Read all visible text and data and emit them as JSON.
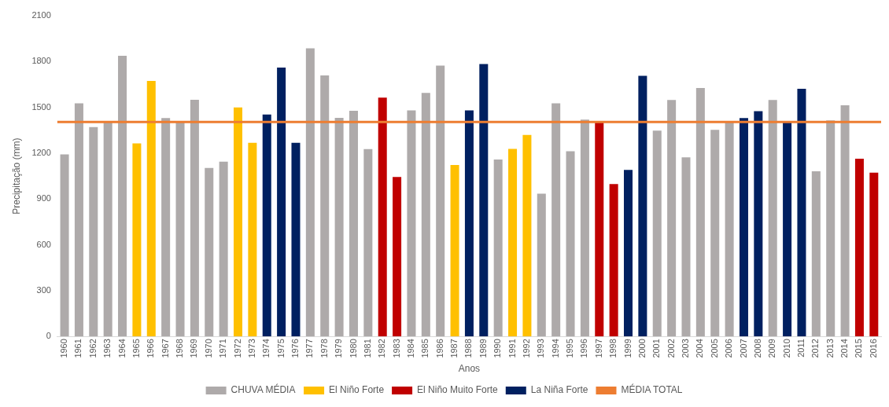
{
  "chart_data": {
    "type": "bar",
    "xlabel": "Anos",
    "ylabel": "Precipitação (mm)",
    "stacked": true,
    "categories": [
      "1960",
      "1961",
      "1962",
      "1963",
      "1964",
      "1965",
      "1966",
      "1967",
      "1968",
      "1969",
      "1970",
      "1971",
      "1972",
      "1973",
      "1974",
      "1975",
      "1976",
      "1977",
      "1978",
      "1979",
      "1980",
      "1981",
      "1982",
      "1983",
      "1984",
      "1985",
      "1986",
      "1987",
      "1988",
      "1989",
      "1990",
      "1991",
      "1992",
      "1993",
      "1994",
      "1995",
      "1996",
      "1997",
      "1998",
      "1999",
      "2000",
      "2001",
      "2002",
      "2003",
      "2004",
      "2005",
      "2006",
      "2007",
      "2008",
      "2009",
      "2010",
      "2011",
      "2012",
      "2013",
      "2014",
      "2015",
      "2016"
    ],
    "series": [
      {
        "name": "CHUVA MÉDIA",
        "color": "#aeaaaa",
        "values": [
          1192,
          1526,
          1371,
          1404,
          1837,
          null,
          null,
          1430,
          1404,
          1550,
          1103,
          1144,
          null,
          null,
          null,
          null,
          null,
          1887,
          1709,
          1431,
          1477,
          1226,
          null,
          null,
          1480,
          1595,
          1773,
          null,
          null,
          null,
          1159,
          null,
          null,
          934,
          1526,
          1212,
          1419,
          null,
          null,
          null,
          null,
          1348,
          1548,
          1173,
          1626,
          1353,
          1404,
          null,
          null,
          1548,
          null,
          null,
          1081,
          1415,
          1513,
          null,
          null
        ]
      },
      {
        "name": "El Niño Forte",
        "color": "#ffc000",
        "values": [
          null,
          null,
          null,
          null,
          null,
          1264,
          1673,
          null,
          null,
          null,
          null,
          null,
          1499,
          1268,
          null,
          null,
          null,
          null,
          null,
          null,
          null,
          null,
          null,
          null,
          null,
          null,
          null,
          1123,
          null,
          null,
          null,
          1228,
          1319,
          null,
          null,
          null,
          null,
          null,
          null,
          null,
          null,
          null,
          null,
          null,
          null,
          null,
          null,
          null,
          null,
          null,
          null,
          null,
          null,
          null,
          null,
          null,
          null
        ]
      },
      {
        "name": "El Niño Muito Forte",
        "color": "#c00000",
        "values": [
          null,
          null,
          null,
          null,
          null,
          null,
          null,
          null,
          null,
          null,
          null,
          null,
          null,
          null,
          null,
          null,
          null,
          null,
          null,
          null,
          null,
          null,
          1564,
          1044,
          null,
          null,
          null,
          null,
          null,
          null,
          null,
          null,
          null,
          null,
          null,
          null,
          null,
          1400,
          997,
          null,
          null,
          null,
          null,
          null,
          null,
          null,
          null,
          null,
          null,
          null,
          null,
          null,
          null,
          null,
          null,
          1164,
          1072
        ]
      },
      {
        "name": "La Niña Forte",
        "color": "#002060",
        "values": [
          null,
          null,
          null,
          null,
          null,
          null,
          null,
          null,
          null,
          null,
          null,
          null,
          null,
          null,
          1453,
          1760,
          1268,
          null,
          null,
          null,
          null,
          null,
          null,
          null,
          null,
          null,
          null,
          null,
          1480,
          1784,
          null,
          null,
          null,
          null,
          null,
          null,
          null,
          null,
          null,
          1090,
          1706,
          null,
          null,
          null,
          null,
          null,
          null,
          1430,
          1475,
          null,
          1400,
          1622,
          null,
          null,
          null,
          null,
          null
        ]
      }
    ],
    "ref_lines": [
      {
        "axis": "y",
        "value": 1404,
        "label": "MÉDIA TOTAL",
        "color": "#ed7d31"
      }
    ],
    "ylim": [
      0,
      2100
    ],
    "yticks": [
      0,
      300,
      600,
      900,
      1200,
      1500,
      1800,
      2100
    ],
    "grid": false,
    "legend": "bottom"
  }
}
